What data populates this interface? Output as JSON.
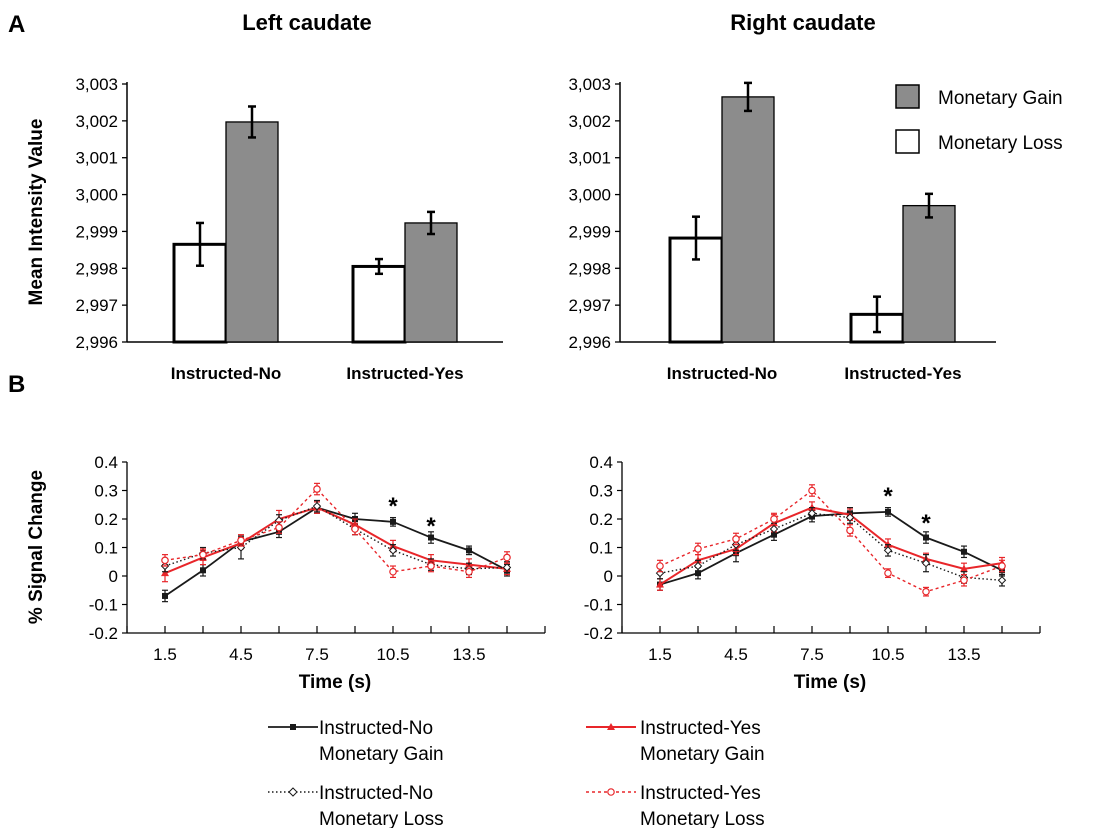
{
  "panel_labels": {
    "a": "A",
    "b": "B"
  },
  "colors": {
    "gain_bar": "#8c8c8c",
    "loss_bar": "#ffffff",
    "instructed_yes": "#e8262a",
    "instructed_no": "#1a1a1a"
  },
  "chart_data": [
    {
      "type": "bar",
      "title": "Left caudate",
      "ylabel": "Mean Intensity Value",
      "ylim": [
        2996,
        3003
      ],
      "yticks": [
        "2,996",
        "2,997",
        "2,998",
        "2,999",
        "3,000",
        "3,001",
        "3,002",
        "3,003"
      ],
      "categories": [
        "Instructed-No",
        "Instructed-Yes"
      ],
      "series": [
        {
          "name": "Monetary Loss",
          "values": [
            2998.65,
            2998.05
          ],
          "errors": [
            0.58,
            0.2
          ]
        },
        {
          "name": "Monetary Gain",
          "values": [
            3001.97,
            2999.23
          ],
          "errors": [
            0.42,
            0.3
          ]
        }
      ]
    },
    {
      "type": "bar",
      "title": "Right caudate",
      "ylim": [
        2996,
        3003
      ],
      "yticks": [
        "2,996",
        "2,997",
        "2,998",
        "2,999",
        "3,000",
        "3,001",
        "3,002",
        "3,003"
      ],
      "categories": [
        "Instructed-No",
        "Instructed-Yes"
      ],
      "series": [
        {
          "name": "Monetary Loss",
          "values": [
            2998.82,
            2996.75
          ],
          "errors": [
            0.58,
            0.48
          ]
        },
        {
          "name": "Monetary Gain",
          "values": [
            3002.65,
            2999.7
          ],
          "errors": [
            0.38,
            0.32
          ]
        }
      ],
      "legend": [
        "Monetary Gain",
        "Monetary Loss"
      ],
      "legend_position": "top-right"
    },
    {
      "type": "line",
      "ylabel": "% Signal Change",
      "xlabel": "Time (s)",
      "ylim": [
        -0.2,
        0.4
      ],
      "xlim": [
        0,
        16.5
      ],
      "yticks": [
        "0.4",
        "0.3",
        "0.2",
        "0.1",
        "0",
        "-0.1",
        "-0.2"
      ],
      "xticks": [
        {
          "value": 1.5,
          "label": "1.5"
        },
        {
          "value": 4.5,
          "label": "4.5"
        },
        {
          "value": 7.5,
          "label": "7.5"
        },
        {
          "value": 10.5,
          "label": "10.5"
        },
        {
          "value": 13.5,
          "label": "13.5"
        }
      ],
      "x": [
        1.5,
        3,
        4.5,
        6,
        7.5,
        9,
        10.5,
        12,
        13.5,
        15
      ],
      "series": [
        {
          "name": "Instructed-No Monetary Gain",
          "values": [
            -0.07,
            0.02,
            0.12,
            0.155,
            0.24,
            0.2,
            0.19,
            0.135,
            0.09,
            0.02
          ],
          "errors": [
            0.02,
            0.02,
            0.02,
            0.02,
            0.02,
            0.02,
            0.015,
            0.02,
            0.015,
            0.02
          ]
        },
        {
          "name": "Instructed-Yes Monetary Gain",
          "values": [
            0.01,
            0.065,
            0.115,
            0.2,
            0.24,
            0.18,
            0.105,
            0.055,
            0.04,
            0.025
          ],
          "errors": [
            0.03,
            0.025,
            0.02,
            0.03,
            0.02,
            0.02,
            0.02,
            0.02,
            0.02,
            0.02
          ]
        },
        {
          "name": "Instructed-No Monetary Loss",
          "values": [
            0.035,
            0.08,
            0.1,
            0.195,
            0.245,
            0.165,
            0.09,
            0.04,
            0.025,
            0.03
          ],
          "errors": [
            0.02,
            0.02,
            0.04,
            0.02,
            0.02,
            0.02,
            0.02,
            0.02,
            0.02,
            0.02
          ]
        },
        {
          "name": "Instructed-Yes Monetary Loss",
          "values": [
            0.055,
            0.075,
            0.125,
            0.17,
            0.305,
            0.165,
            0.015,
            0.035,
            0.015,
            0.065
          ],
          "errors": [
            0.02,
            0.02,
            0.02,
            0.02,
            0.02,
            0.02,
            0.02,
            0.02,
            0.02,
            0.02
          ]
        }
      ],
      "annotations": [
        {
          "x": 10.5,
          "y": 0.26,
          "text": "*"
        },
        {
          "x": 12,
          "y": 0.19,
          "text": "*"
        }
      ]
    },
    {
      "type": "line",
      "xlabel": "Time (s)",
      "ylim": [
        -0.2,
        0.4
      ],
      "xlim": [
        0,
        16.5
      ],
      "yticks": [
        "0.4",
        "0.3",
        "0.2",
        "0.1",
        "0",
        "-0.1",
        "-0.2"
      ],
      "xticks": [
        {
          "value": 1.5,
          "label": "1.5"
        },
        {
          "value": 4.5,
          "label": "4.5"
        },
        {
          "value": 7.5,
          "label": "7.5"
        },
        {
          "value": 10.5,
          "label": "10.5"
        },
        {
          "value": 13.5,
          "label": "13.5"
        }
      ],
      "x": [
        1.5,
        3,
        4.5,
        6,
        7.5,
        9,
        10.5,
        12,
        13.5,
        15
      ],
      "series": [
        {
          "name": "Instructed-No Monetary Gain",
          "values": [
            -0.03,
            0.01,
            0.08,
            0.145,
            0.21,
            0.22,
            0.225,
            0.135,
            0.085,
            0.02
          ],
          "errors": [
            0.02,
            0.02,
            0.03,
            0.02,
            0.02,
            0.02,
            0.015,
            0.02,
            0.02,
            0.02
          ]
        },
        {
          "name": "Instructed-Yes Monetary Gain",
          "values": [
            -0.03,
            0.055,
            0.095,
            0.185,
            0.24,
            0.215,
            0.11,
            0.06,
            0.025,
            0.045
          ],
          "errors": [
            0.02,
            0.02,
            0.02,
            0.03,
            0.02,
            0.02,
            0.02,
            0.02,
            0.02,
            0.02
          ]
        },
        {
          "name": "Instructed-No Monetary Loss",
          "values": [
            0.01,
            0.035,
            0.11,
            0.165,
            0.22,
            0.205,
            0.09,
            0.045,
            -0.005,
            -0.015
          ],
          "errors": [
            0.02,
            0.02,
            0.02,
            0.02,
            0.02,
            0.02,
            0.02,
            0.03,
            0.02,
            0.02
          ]
        },
        {
          "name": "Instructed-Yes Monetary Loss",
          "values": [
            0.035,
            0.095,
            0.13,
            0.2,
            0.3,
            0.16,
            0.01,
            -0.055,
            -0.015,
            0.035
          ],
          "errors": [
            0.02,
            0.02,
            0.02,
            0.02,
            0.02,
            0.02,
            0.015,
            0.015,
            0.02,
            0.02
          ]
        }
      ],
      "annotations": [
        {
          "x": 10.5,
          "y": 0.295,
          "text": "*"
        },
        {
          "x": 12,
          "y": 0.2,
          "text": "*"
        }
      ]
    }
  ],
  "line_legend": [
    {
      "line1": "Instructed-No",
      "line2": "Monetary Gain"
    },
    {
      "line1": "Instructed-Yes",
      "line2": "Monetary Gain"
    },
    {
      "line1": "Instructed-No",
      "line2": "Monetary Loss"
    },
    {
      "line1": "Instructed-Yes",
      "line2": "Monetary Loss"
    }
  ]
}
